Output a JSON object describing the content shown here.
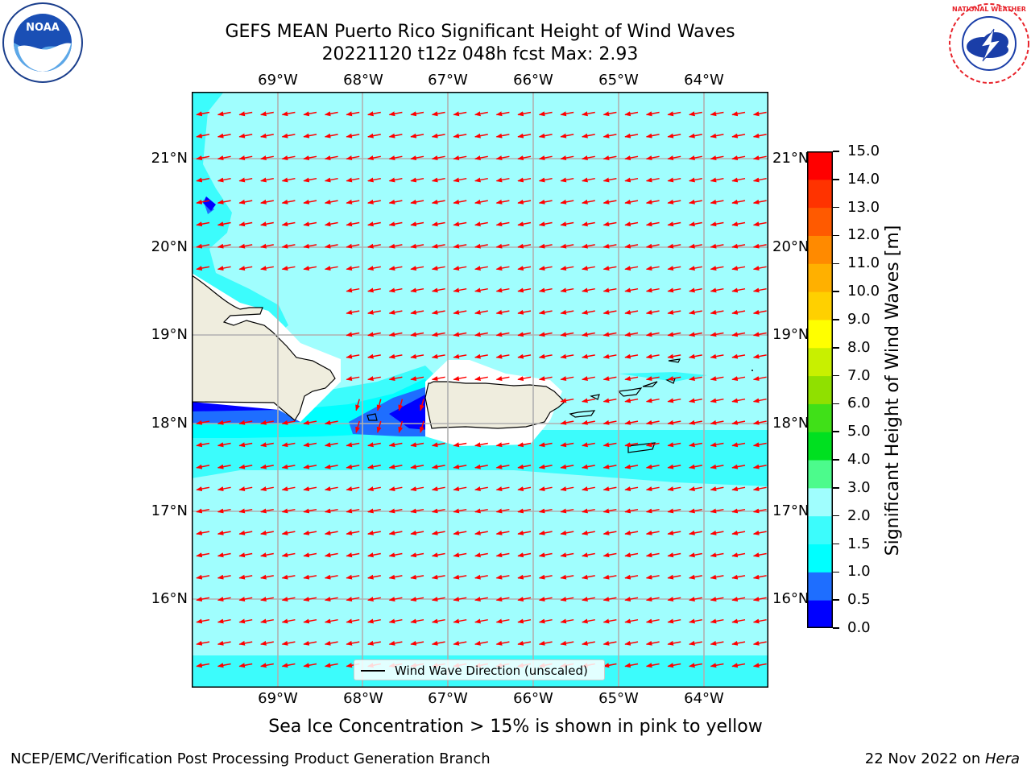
{
  "header": {
    "title_line1": "GEFS MEAN Puerto Rico Significant Height of Wind Waves",
    "title_line2": "20221120 t12z 048h fcst   Max: 2.93"
  },
  "logos": {
    "noaa_text": "NOAA",
    "noaa_ring_text": "NATIONAL OCEANIC AND ATMOSPHERIC ADMINISTRATION · U.S. DEPARTMENT OF COMMERCE",
    "nws_ring_text": "NATIONAL WEATHER SERVICE"
  },
  "map": {
    "lon_labels": [
      "69°W",
      "68°W",
      "67°W",
      "66°W",
      "65°W",
      "64°W"
    ],
    "lat_labels": [
      "21°N",
      "20°N",
      "19°N",
      "18°N",
      "17°N",
      "16°N"
    ],
    "gridlines": true,
    "legend_label": "Wind Wave Direction (unscaled)",
    "arrow_direction": "toward west-southwest",
    "colors": {
      "land": "#efedde",
      "coast": "#000000",
      "grid": "#b0b0b0",
      "arrow": "#ff0000"
    }
  },
  "colorbar": {
    "title": "Significant Height of Wind Waves [m]",
    "ticks": [
      "0.0",
      "0.5",
      "1.0",
      "1.5",
      "2.0",
      "3.0",
      "4.0",
      "5.0",
      "6.0",
      "7.0",
      "8.0",
      "9.0",
      "10.0",
      "11.0",
      "12.0",
      "13.0",
      "14.0",
      "15.0"
    ],
    "colors": [
      "#0000ff",
      "#1e6eff",
      "#00ffff",
      "#3cfcfc",
      "#a0fefe",
      "#4cfb8c",
      "#00e020",
      "#40e018",
      "#90e000",
      "#c8f000",
      "#ffff00",
      "#ffd000",
      "#ffb000",
      "#ff8a00",
      "#ff5a00",
      "#ff3300",
      "#ff0000"
    ]
  },
  "notes": {
    "sea_ice": "Sea Ice Concentration > 15% is shown in pink to yellow"
  },
  "footer": {
    "left": "NCEP/EMC/Verification Post Processing Product Generation Branch",
    "date": "22 Nov 2022 on ",
    "host": "Hera"
  }
}
